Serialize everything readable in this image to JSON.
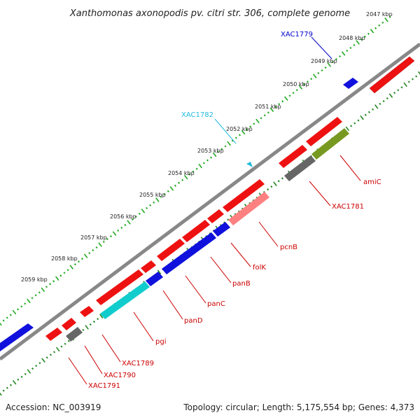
{
  "title": "Xanthomonas axonopodis pv. citri str. 306, complete genome",
  "footer": {
    "accession": "Accession: NC_003919",
    "topology": "Topology: circular; Length: 5,175,554 bp; Genes: 4,373"
  },
  "scale_labels": [
    "2047 kbp",
    "2048 kbp",
    "2049 kbp",
    "2050 kbp",
    "2051 kbp",
    "2052 kbp",
    "2053 kbp",
    "2054 kbp",
    "2055 kbp",
    "2056 kbp",
    "2057 kbp",
    "2058 kbp",
    "2059 kbp"
  ],
  "gene_labels": [
    {
      "name": "XAC1779",
      "color": "#0000cc"
    },
    {
      "name": "XAC1782",
      "color": "#22bbdd"
    },
    {
      "name": "amiC",
      "color": "#cc0000"
    },
    {
      "name": "XAC1781",
      "color": "#cc0000"
    },
    {
      "name": "pcnB",
      "color": "#cc0000"
    },
    {
      "name": "folK",
      "color": "#cc0000"
    },
    {
      "name": "panB",
      "color": "#cc0000"
    },
    {
      "name": "panC",
      "color": "#cc0000"
    },
    {
      "name": "panD",
      "color": "#cc0000"
    },
    {
      "name": "pgi",
      "color": "#cc0000"
    },
    {
      "name": "XAC1789",
      "color": "#cc0000"
    },
    {
      "name": "XAC1790",
      "color": "#cc0000"
    },
    {
      "name": "XAC1791",
      "color": "#cc0000"
    }
  ],
  "colors": {
    "backbone": "#8a8a8a",
    "forward_tick": "#22aa22",
    "reverse_tick": "#228822",
    "red": "#ee1111",
    "blue": "#1111dd",
    "cyan": "#11cccc",
    "gray": "#666666",
    "olive": "#779922",
    "salmon": "#ff8080"
  }
}
